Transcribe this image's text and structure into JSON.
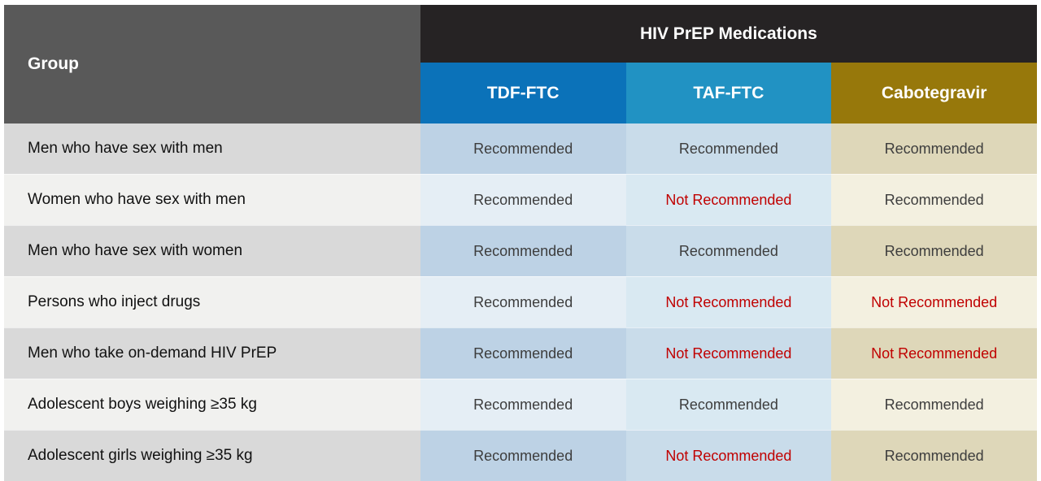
{
  "labels": {
    "recommended": "Recommended",
    "not_recommended": "Not Recommended"
  },
  "colors": {
    "group-header-bg": "#595959",
    "med-header-bg": "#262324",
    "tdf-header-bg": "#0b72b9",
    "taf-header-bg": "#2192c3",
    "cabo-header-bg": "#97780b",
    "group-odd": "#d9d9d9",
    "group-even": "#f1f1ef",
    "tdf-odd": "#bdd2e5",
    "tdf-even": "#e5eef5",
    "taf-odd": "#c9dcea",
    "taf-even": "#d9e9f2",
    "cabo-odd": "#ded7b9",
    "cabo-even": "#f3f0e0",
    "header-text": "#ffffff",
    "group-text": "#111111",
    "recommended-text": "#3d3d3d",
    "not-recommended-text": "#c00000"
  },
  "chart_data": {
    "type": "table",
    "title": "HIV PrEP Medications",
    "group_header": "Group",
    "columns": [
      {
        "id": "tdf-ftc",
        "label": "TDF-FTC",
        "color": "#0b72b9"
      },
      {
        "id": "taf-ftc",
        "label": "TAF-FTC",
        "color": "#2192c3"
      },
      {
        "id": "cabotegravir",
        "label": "Cabotegravir",
        "color": "#97780b"
      }
    ],
    "rows": [
      {
        "group": "Men who have sex with men",
        "values": [
          "Recommended",
          "Recommended",
          "Recommended"
        ]
      },
      {
        "group": "Women who have sex with men",
        "values": [
          "Recommended",
          "Not Recommended",
          "Recommended"
        ]
      },
      {
        "group": "Men who have sex with women",
        "values": [
          "Recommended",
          "Recommended",
          "Recommended"
        ]
      },
      {
        "group": "Persons who inject drugs",
        "values": [
          "Recommended",
          "Not Recommended",
          "Not Recommended"
        ]
      },
      {
        "group": "Men who take on-demand HIV PrEP",
        "values": [
          "Recommended",
          "Not Recommended",
          "Not Recommended"
        ]
      },
      {
        "group": "Adolescent boys weighing ≥35 kg",
        "values": [
          "Recommended",
          "Recommended",
          "Recommended"
        ]
      },
      {
        "group": "Adolescent girls weighing ≥35 kg",
        "values": [
          "Recommended",
          "Not Recommended",
          "Recommended"
        ]
      }
    ]
  }
}
